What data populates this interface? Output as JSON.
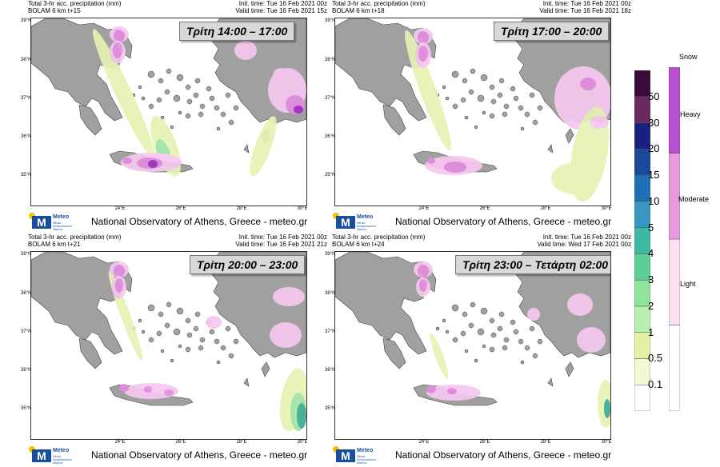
{
  "panels": [
    {
      "header_left": [
        "Total 3-hr acc. precipitation (mm)",
        "BOLAM 6 km t+15"
      ],
      "header_right": [
        "Init. time: Tue 16 Feb 2021 00z",
        "Valid time: Tue 16 Feb 2021 15z"
      ],
      "time_label": "Τρίτη 14:00 – 17:00"
    },
    {
      "header_left": [
        "Total 3-hr acc. precipitation (mm)",
        "BOLAM 6 km t+18"
      ],
      "header_right": [
        "Init. time: Tue 16 Feb 2021 00z",
        "Valid time: Tue 16 Feb 2021 18z"
      ],
      "time_label": "Τρίτη 17:00 – 20:00"
    },
    {
      "header_left": [
        "Total 3-hr acc. precipitation (mm)",
        "BOLAM 6 km t+21"
      ],
      "header_right": [
        "Init. time: Tue 16 Feb 2021 00z",
        "Valid time: Tue 16 Feb 2021 21z"
      ],
      "time_label": "Τρίτη 20:00 – 23:00"
    },
    {
      "header_left": [
        "Total 3-hr acc. precipitation (mm)",
        "BOLAM 6 km t+24"
      ],
      "header_right": [
        "Init. time: Tue 16 Feb 2021 00z",
        "Valid time: Wed 17 Feb 2021 00z"
      ],
      "time_label": "Τρίτη 23:00 – Τετάρτη 02:00"
    }
  ],
  "lat_labels": [
    "39°N",
    "38°N",
    "37°N",
    "36°N",
    "35°N"
  ],
  "lon_labels": [
    "24°E",
    "26°E",
    "28°E",
    "30°E"
  ],
  "credit": "National Observatory of Athens, Greece - meteo.gr",
  "logo": {
    "name": "Meteo",
    "sub": "Εθνικό Αστεροσκοπείο Αθηνών"
  },
  "rain_legend": {
    "labels": [
      "0.1",
      "0.5",
      "1",
      "2",
      "3",
      "4",
      "5",
      "10",
      "15",
      "20",
      "30",
      "50"
    ],
    "colors": [
      "#ffffff",
      "#f3f7d6",
      "#e4f0a8",
      "#b8f0b0",
      "#8fe39b",
      "#5ccf95",
      "#3cb9a4",
      "#3896c2",
      "#1e6fb6",
      "#174a9c",
      "#1a2080",
      "#6b2a5e",
      "#3a0a3a"
    ]
  },
  "snow_legend": {
    "title": "Snow",
    "labels": [
      "Light",
      "Moderate",
      "Heavy"
    ],
    "colors": [
      "#fbe0f4",
      "#e79ae0",
      "#b84fd0"
    ]
  },
  "colors": {
    "land": "#a0a0a0",
    "snow_light": "#f5c8ef",
    "snow_mod": "#e48ce0",
    "snow_heavy": "#a030c0",
    "rain_light": "#e6f2b4",
    "rain_green": "#9ee3a4",
    "rain_teal": "#3cab8e"
  }
}
